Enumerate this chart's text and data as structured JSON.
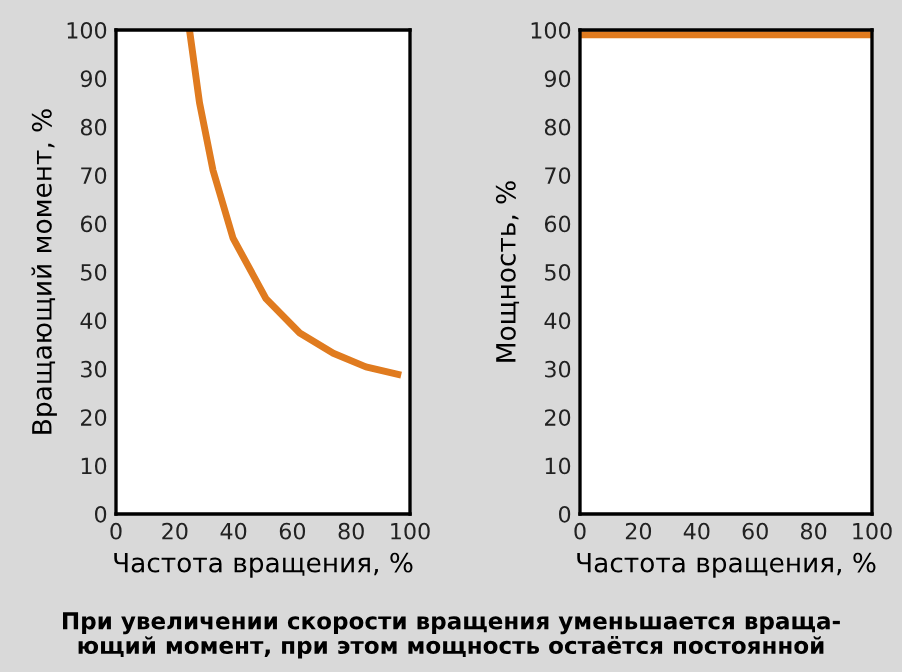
{
  "chart_data": [
    {
      "type": "line",
      "xlabel": "Частота вращения, %",
      "ylabel": "Вращающий момент, %",
      "x": [
        25,
        28.4,
        33,
        39.8,
        51,
        62.5,
        73.9,
        85,
        97
      ],
      "values": [
        100,
        85,
        71,
        57,
        44.5,
        37.4,
        33.2,
        30.4,
        28.7
      ],
      "color": "#e07b1f",
      "xlim": [
        0,
        100
      ],
      "ylim": [
        0,
        100
      ],
      "xticks": [
        0,
        20,
        40,
        60,
        80,
        100
      ],
      "yticks": [
        0,
        10,
        20,
        30,
        40,
        50,
        60,
        70,
        80,
        90,
        100
      ],
      "grid": false,
      "annotations": [
        "При увеличении скорости вращения уменьшается враща-\nющий момент, при этом мощность остаётся постоянной"
      ]
    },
    {
      "type": "line",
      "xlabel": "Частота вращения, %",
      "ylabel": "Мощность, %",
      "x": [
        0,
        100
      ],
      "values": [
        99,
        99
      ],
      "color": "#e07b1f",
      "xlim": [
        0,
        100
      ],
      "ylim": [
        0,
        100
      ],
      "xticks": [
        0,
        20,
        40,
        60,
        80,
        100
      ],
      "yticks": [
        0,
        10,
        20,
        30,
        40,
        50,
        60,
        70,
        80,
        90,
        100
      ],
      "grid": false
    }
  ]
}
